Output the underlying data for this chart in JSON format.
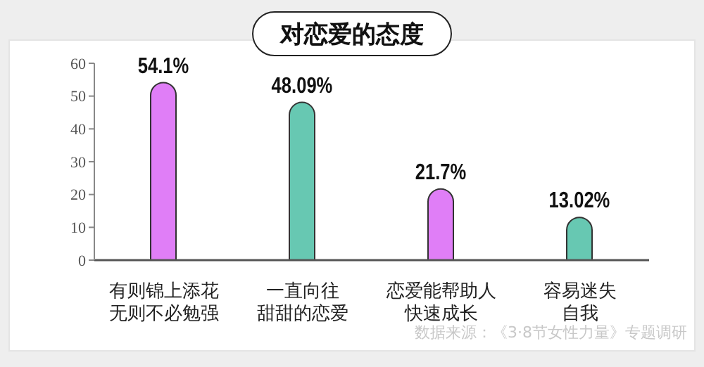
{
  "chart_data": {
    "type": "bar",
    "title": "对恋爱的态度",
    "categories": [
      "有则锦上添花无则不必勉强",
      "一直向往甜甜的恋爱",
      "恋爱能帮助人快速成长",
      "容易迷失自我"
    ],
    "values": [
      54.1,
      48.09,
      21.7,
      13.02
    ],
    "colors": [
      "#e07ef7",
      "#67c8b2",
      "#e07ef7",
      "#67c8b2"
    ],
    "value_labels": [
      "54.1%",
      "48.09%",
      "21.7%",
      "13.02%"
    ],
    "ylim": [
      0,
      60
    ],
    "yticks": [
      0,
      10,
      20,
      30,
      40,
      50,
      60
    ],
    "grid": false,
    "annotations": [
      "数据来源：《3·8节女性力量》专题调研"
    ]
  }
}
